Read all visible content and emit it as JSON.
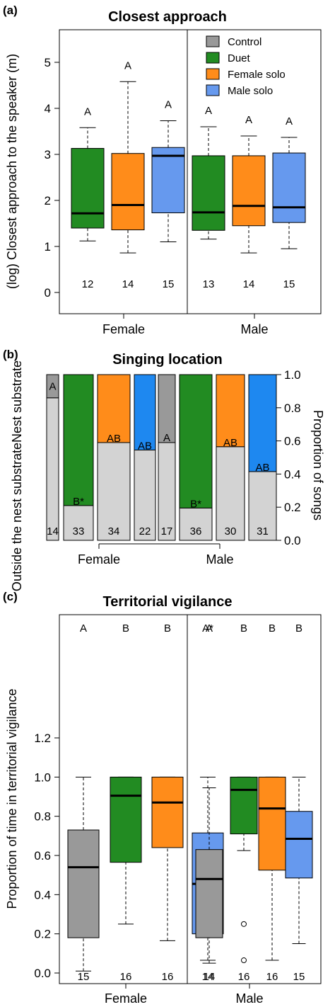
{
  "colors": {
    "control": "#999999",
    "duet": "#228B22",
    "female_solo": "#FF8C1A",
    "male_solo": "#6699EE",
    "male_solo_b": "#1E88F0",
    "outside": "#D3D3D3"
  },
  "chart_data": [
    {
      "type": "box",
      "panel_label": "(a)",
      "title": "Closest approach",
      "ylabel": "(log) Closest approach to the speaker (m)",
      "xlabel": "",
      "ylim": [
        0,
        5.6
      ],
      "yticks": [
        "0",
        "1",
        "2",
        "3",
        "4",
        "5"
      ],
      "groups": [
        "Female",
        "Male"
      ],
      "legend": {
        "placement": "top-right",
        "entries": [
          {
            "label": "Control",
            "color": "#999999"
          },
          {
            "label": "Duet",
            "color": "#228B22"
          },
          {
            "label": "Female solo",
            "color": "#FF8C1A"
          },
          {
            "label": "Male solo",
            "color": "#6699EE"
          }
        ]
      },
      "boxes": [
        {
          "group": "Female",
          "series": "Duet",
          "color": "#228B22",
          "whisker_low": 1.12,
          "q1": 1.4,
          "median": 1.72,
          "q3": 3.13,
          "whisker_high": 3.58,
          "outliers": [],
          "letter": "A",
          "n": "12"
        },
        {
          "group": "Female",
          "series": "Female solo",
          "color": "#FF8C1A",
          "whisker_low": 0.86,
          "q1": 1.36,
          "median": 1.9,
          "q3": 3.02,
          "whisker_high": 4.58,
          "outliers": [],
          "letter": "A",
          "n": "14"
        },
        {
          "group": "Female",
          "series": "Male solo",
          "color": "#6699EE",
          "whisker_low": 1.1,
          "q1": 1.73,
          "median": 2.97,
          "q3": 3.15,
          "whisker_high": 3.73,
          "outliers": [],
          "letter": "A",
          "n": "15"
        },
        {
          "group": "Male",
          "series": "Duet",
          "color": "#228B22",
          "whisker_low": 1.16,
          "q1": 1.35,
          "median": 1.74,
          "q3": 2.97,
          "whisker_high": 3.6,
          "outliers": [],
          "letter": "A",
          "n": "13"
        },
        {
          "group": "Male",
          "series": "Female solo",
          "color": "#FF8C1A",
          "whisker_low": 0.86,
          "q1": 1.45,
          "median": 1.88,
          "q3": 2.97,
          "whisker_high": 3.4,
          "outliers": [],
          "letter": "A",
          "n": "14"
        },
        {
          "group": "Male",
          "series": "Male solo",
          "color": "#6699EE",
          "whisker_low": 0.95,
          "q1": 1.52,
          "median": 1.85,
          "q3": 3.03,
          "whisker_high": 3.37,
          "outliers": [],
          "letter": "A",
          "n": "15"
        }
      ]
    },
    {
      "type": "stacked_bar",
      "panel_label": "(b)",
      "title": "Singing location",
      "ylabel": "Proportion of songs",
      "left_labels": [
        "Nest substrate",
        "Outside the nest substrate"
      ],
      "ylim": [
        0,
        1
      ],
      "yticks": [
        "0.0",
        "0.2",
        "0.4",
        "0.6",
        "0.8",
        "1.0"
      ],
      "groups": [
        "Female",
        "Male"
      ],
      "bars": [
        {
          "group": "Female",
          "series": "Control",
          "color": "#999999",
          "outside": 0.86,
          "nest": 0.14,
          "letter": "A",
          "letter_pos": 0.93,
          "n": "14"
        },
        {
          "group": "Female",
          "series": "Duet",
          "color": "#228B22",
          "outside": 0.21,
          "nest": 0.79,
          "letter": "B*",
          "letter_pos": 0.235,
          "n": "33"
        },
        {
          "group": "Female",
          "series": "Female solo",
          "color": "#FF8C1A",
          "outside": 0.59,
          "nest": 0.41,
          "letter": "AB",
          "letter_pos": 0.615,
          "n": "34"
        },
        {
          "group": "Female",
          "series": "Male solo",
          "color": "#1E88F0",
          "outside": 0.545,
          "nest": 0.455,
          "letter": "AB",
          "letter_pos": 0.57,
          "n": "22"
        },
        {
          "group": "Male",
          "series": "Control",
          "color": "#999999",
          "outside": 0.59,
          "nest": 0.41,
          "letter": "A",
          "letter_pos": 0.62,
          "n": "17"
        },
        {
          "group": "Male",
          "series": "Duet",
          "color": "#228B22",
          "outside": 0.195,
          "nest": 0.805,
          "letter": "B*",
          "letter_pos": 0.22,
          "n": "36"
        },
        {
          "group": "Male",
          "series": "Female solo",
          "color": "#FF8C1A",
          "outside": 0.565,
          "nest": 0.435,
          "letter": "AB",
          "letter_pos": 0.59,
          "n": "30"
        },
        {
          "group": "Male",
          "series": "Male solo",
          "color": "#1E88F0",
          "outside": 0.415,
          "nest": 0.585,
          "letter": "AB",
          "letter_pos": 0.44,
          "n": "31"
        }
      ]
    },
    {
      "type": "box",
      "panel_label": "(c)",
      "title": "Territorial vigilance",
      "ylabel": "Proportion of time in territorial vigilance",
      "xlabel": "",
      "ylim": [
        -0.03,
        1.24
      ],
      "yticks": [
        "0.0",
        "0.2",
        "0.4",
        "0.6",
        "0.8",
        "1.0",
        "1.2"
      ],
      "groups": [
        "Female",
        "Male"
      ],
      "boxes": [
        {
          "group": "Female",
          "series": "Control",
          "color": "#999999",
          "whisker_low": 0.01,
          "q1": 0.18,
          "median": 0.54,
          "q3": 0.73,
          "whisker_high": 1.0,
          "outliers": [],
          "letter": "A",
          "n": "15"
        },
        {
          "group": "Female",
          "series": "Duet",
          "color": "#228B22",
          "whisker_low": 0.25,
          "q1": 0.565,
          "median": 0.905,
          "q3": 1.0,
          "whisker_high": 1.0,
          "outliers": [],
          "letter": "B",
          "n": "16"
        },
        {
          "group": "Female",
          "series": "Female solo",
          "color": "#FF8C1A",
          "whisker_low": 0.165,
          "q1": 0.64,
          "median": 0.87,
          "q3": 1.0,
          "whisker_high": 1.0,
          "outliers": [],
          "letter": "B",
          "n": "16"
        },
        {
          "group": "Female",
          "series": "Male solo",
          "color": "#6699EE",
          "whisker_low": 0.065,
          "q1": 0.2,
          "median": 0.455,
          "q3": 0.715,
          "whisker_high": 1.0,
          "outliers": [],
          "letter": "A*",
          "n": "14"
        },
        {
          "group": "Male",
          "series": "Control",
          "color": "#999999",
          "whisker_low": 0.05,
          "q1": 0.18,
          "median": 0.48,
          "q3": 0.63,
          "whisker_high": 0.945,
          "outliers": [],
          "letter": "A",
          "n": "14"
        },
        {
          "group": "Male",
          "series": "Duet",
          "color": "#228B22",
          "whisker_low": 0.625,
          "q1": 0.71,
          "median": 0.935,
          "q3": 1.0,
          "whisker_high": 1.0,
          "outliers": [
            0.25,
            0.065
          ],
          "letter": "B",
          "n": "16"
        },
        {
          "group": "Male",
          "series": "Female solo",
          "color": "#FF8C1A",
          "whisker_low": 0.065,
          "q1": 0.525,
          "median": 0.84,
          "q3": 1.0,
          "whisker_high": 1.0,
          "outliers": [],
          "letter": "B",
          "n": "16"
        },
        {
          "group": "Male",
          "series": "Male solo",
          "color": "#6699EE",
          "whisker_low": 0.15,
          "q1": 0.485,
          "median": 0.685,
          "q3": 0.825,
          "whisker_high": 1.0,
          "outliers": [],
          "letter": "B",
          "n": "15"
        }
      ]
    }
  ]
}
